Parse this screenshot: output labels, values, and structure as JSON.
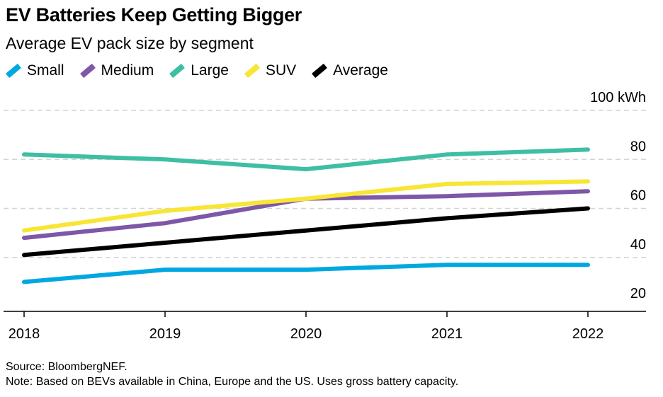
{
  "title": "EV Batteries Keep Getting Bigger",
  "subtitle": "Average EV pack size by segment",
  "source": "Source: BloombergNEF.",
  "note": "Note: Based on BEVs available in China, Europe and the US. Uses gross battery capacity.",
  "chart_data": {
    "type": "line",
    "categories": [
      "2018",
      "2019",
      "2020",
      "2021",
      "2022"
    ],
    "yunit_label": "100 kWh",
    "yticks": [
      20,
      40,
      60,
      80,
      100
    ],
    "ylim": [
      18,
      100
    ],
    "grid": true,
    "legend_position": "top-left",
    "series": [
      {
        "name": "Small",
        "color": "#00a8e1",
        "values": [
          30,
          35,
          35,
          37,
          37
        ]
      },
      {
        "name": "Medium",
        "color": "#7e57a8",
        "values": [
          48,
          54,
          64,
          65,
          67
        ]
      },
      {
        "name": "Large",
        "color": "#3ebfa3",
        "values": [
          82,
          80,
          76,
          82,
          84
        ]
      },
      {
        "name": "SUV",
        "color": "#f8e534",
        "values": [
          51,
          59,
          64,
          70,
          71
        ]
      },
      {
        "name": "Average",
        "color": "#000000",
        "values": [
          41,
          46,
          51,
          56,
          60
        ]
      }
    ]
  }
}
